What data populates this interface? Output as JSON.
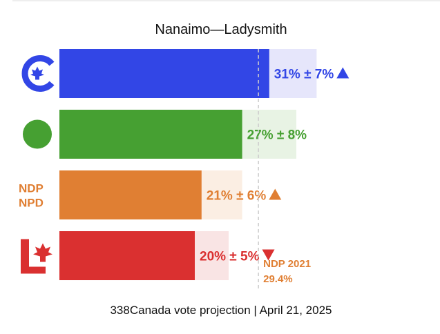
{
  "chart_data": {
    "type": "bar",
    "orientation": "horizontal",
    "title": "Nanaimo—Ladysmith",
    "footer": "338Canada vote projection | April 21, 2025",
    "xlim": [
      0,
      50
    ],
    "series": [
      {
        "party": "CPC",
        "logo": "conservative-logo-icon",
        "value": 31,
        "margin": 7,
        "label": "31% ± 7%",
        "trend": "up",
        "color": "#3246e6",
        "bg_color": "#e6e6fb"
      },
      {
        "party": "GPC",
        "logo": "green-dot-icon",
        "value": 27,
        "margin": 8,
        "label": "27% ± 8%",
        "trend": "none",
        "color": "#46a032",
        "bg_color": "#e8f3e4"
      },
      {
        "party": "NDP",
        "logo": "ndp-logo-icon",
        "logo_text": [
          "NDP",
          "NPD"
        ],
        "value": 21,
        "margin": 6,
        "label": "21% ± 6%",
        "trend": "up",
        "color": "#e07f33",
        "bg_color": "#fbeee3"
      },
      {
        "party": "LPC",
        "logo": "liberal-logo-icon",
        "value": 20,
        "margin": 5,
        "label": "20% ± 5%",
        "trend": "down",
        "color": "#da3030",
        "bg_color": "#f9e4e4"
      }
    ],
    "reference_line": {
      "value": 29.4,
      "label": "NDP 2021",
      "value_label": "29.4%",
      "color": "#e07f33"
    }
  }
}
